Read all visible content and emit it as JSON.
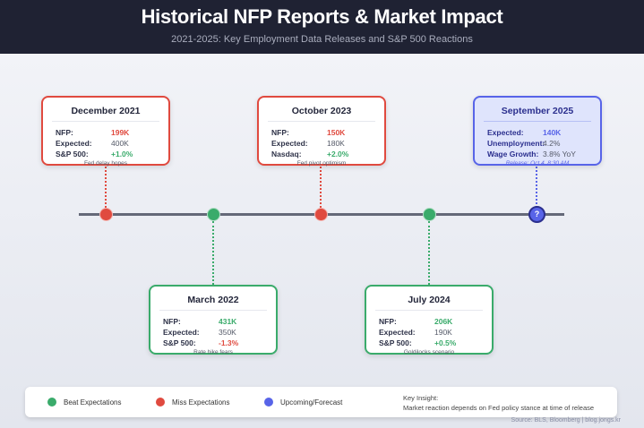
{
  "header": {
    "title": "Historical NFP Reports & Market Impact",
    "subtitle": "2021-2025: Key Employment Data Releases and S&P 500 Reactions"
  },
  "colors": {
    "beat": "#3aab6b",
    "miss": "#e04a3f",
    "forecast": "#5864e8",
    "header_bg": "#1f2233"
  },
  "events": [
    {
      "title": "December 2021",
      "status": "miss",
      "rows": [
        {
          "label": "NFP:",
          "value": "199K"
        },
        {
          "label": "Expected:",
          "value": "400K"
        },
        {
          "label": "S&P 500:",
          "value": "+1.0%"
        }
      ],
      "note": "Fed delay hopes"
    },
    {
      "title": "March 2022",
      "status": "beat",
      "rows": [
        {
          "label": "NFP:",
          "value": "431K"
        },
        {
          "label": "Expected:",
          "value": "350K"
        },
        {
          "label": "S&P 500:",
          "value": "-1.3%"
        }
      ],
      "note": "Rate hike fears"
    },
    {
      "title": "October 2023",
      "status": "miss",
      "rows": [
        {
          "label": "NFP:",
          "value": "150K"
        },
        {
          "label": "Expected:",
          "value": "180K"
        },
        {
          "label": "Nasdaq:",
          "value": "+2.0%"
        }
      ],
      "note": "Fed pivot optimism"
    },
    {
      "title": "July 2024",
      "status": "beat",
      "rows": [
        {
          "label": "NFP:",
          "value": "206K"
        },
        {
          "label": "Expected:",
          "value": "190K"
        },
        {
          "label": "S&P 500:",
          "value": "+0.5%"
        }
      ],
      "note": "Goldilocks scenario"
    },
    {
      "title": "September 2025",
      "status": "forecast",
      "rows": [
        {
          "label": "Expected:",
          "value": "140K"
        },
        {
          "label": "Unemployment:",
          "value": "4.2%"
        },
        {
          "label": "Wage Growth:",
          "value": "3.8% YoY"
        }
      ],
      "note": "Release: Oct 4, 8:30 AM",
      "marker": "?"
    }
  ],
  "legend": {
    "beat": "Beat Expectations",
    "miss": "Miss Expectations",
    "forecast": "Upcoming/Forecast",
    "insight_title": "Key Insight:",
    "insight_text": "Market reaction depends on Fed policy stance at time of release"
  },
  "source": "Source: BLS, Bloomberg | blog.jongs.kr"
}
